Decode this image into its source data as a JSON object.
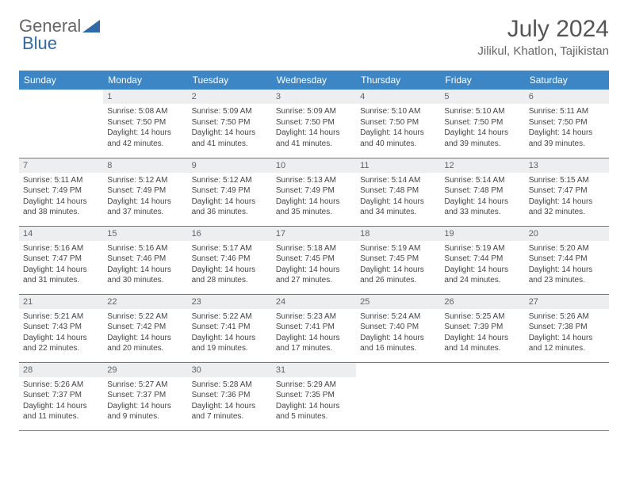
{
  "brand": {
    "name_part1": "General",
    "name_part2": "Blue"
  },
  "title": "July 2024",
  "location": "Jilikul, Khatlon, Tajikistan",
  "colors": {
    "header_bg": "#3d86c6",
    "header_text": "#ffffff",
    "daynum_bg": "#eceeef",
    "daynum_text": "#606468",
    "cell_border": "#3d86c6",
    "body_text": "#444444",
    "title_text": "#555555",
    "brand_accent": "#2f6aa8"
  },
  "weekdays": [
    "Sunday",
    "Monday",
    "Tuesday",
    "Wednesday",
    "Thursday",
    "Friday",
    "Saturday"
  ],
  "weeks": [
    [
      null,
      {
        "n": "1",
        "sr": "Sunrise: 5:08 AM",
        "ss": "Sunset: 7:50 PM",
        "d1": "Daylight: 14 hours",
        "d2": "and 42 minutes."
      },
      {
        "n": "2",
        "sr": "Sunrise: 5:09 AM",
        "ss": "Sunset: 7:50 PM",
        "d1": "Daylight: 14 hours",
        "d2": "and 41 minutes."
      },
      {
        "n": "3",
        "sr": "Sunrise: 5:09 AM",
        "ss": "Sunset: 7:50 PM",
        "d1": "Daylight: 14 hours",
        "d2": "and 41 minutes."
      },
      {
        "n": "4",
        "sr": "Sunrise: 5:10 AM",
        "ss": "Sunset: 7:50 PM",
        "d1": "Daylight: 14 hours",
        "d2": "and 40 minutes."
      },
      {
        "n": "5",
        "sr": "Sunrise: 5:10 AM",
        "ss": "Sunset: 7:50 PM",
        "d1": "Daylight: 14 hours",
        "d2": "and 39 minutes."
      },
      {
        "n": "6",
        "sr": "Sunrise: 5:11 AM",
        "ss": "Sunset: 7:50 PM",
        "d1": "Daylight: 14 hours",
        "d2": "and 39 minutes."
      }
    ],
    [
      {
        "n": "7",
        "sr": "Sunrise: 5:11 AM",
        "ss": "Sunset: 7:49 PM",
        "d1": "Daylight: 14 hours",
        "d2": "and 38 minutes."
      },
      {
        "n": "8",
        "sr": "Sunrise: 5:12 AM",
        "ss": "Sunset: 7:49 PM",
        "d1": "Daylight: 14 hours",
        "d2": "and 37 minutes."
      },
      {
        "n": "9",
        "sr": "Sunrise: 5:12 AM",
        "ss": "Sunset: 7:49 PM",
        "d1": "Daylight: 14 hours",
        "d2": "and 36 minutes."
      },
      {
        "n": "10",
        "sr": "Sunrise: 5:13 AM",
        "ss": "Sunset: 7:49 PM",
        "d1": "Daylight: 14 hours",
        "d2": "and 35 minutes."
      },
      {
        "n": "11",
        "sr": "Sunrise: 5:14 AM",
        "ss": "Sunset: 7:48 PM",
        "d1": "Daylight: 14 hours",
        "d2": "and 34 minutes."
      },
      {
        "n": "12",
        "sr": "Sunrise: 5:14 AM",
        "ss": "Sunset: 7:48 PM",
        "d1": "Daylight: 14 hours",
        "d2": "and 33 minutes."
      },
      {
        "n": "13",
        "sr": "Sunrise: 5:15 AM",
        "ss": "Sunset: 7:47 PM",
        "d1": "Daylight: 14 hours",
        "d2": "and 32 minutes."
      }
    ],
    [
      {
        "n": "14",
        "sr": "Sunrise: 5:16 AM",
        "ss": "Sunset: 7:47 PM",
        "d1": "Daylight: 14 hours",
        "d2": "and 31 minutes."
      },
      {
        "n": "15",
        "sr": "Sunrise: 5:16 AM",
        "ss": "Sunset: 7:46 PM",
        "d1": "Daylight: 14 hours",
        "d2": "and 30 minutes."
      },
      {
        "n": "16",
        "sr": "Sunrise: 5:17 AM",
        "ss": "Sunset: 7:46 PM",
        "d1": "Daylight: 14 hours",
        "d2": "and 28 minutes."
      },
      {
        "n": "17",
        "sr": "Sunrise: 5:18 AM",
        "ss": "Sunset: 7:45 PM",
        "d1": "Daylight: 14 hours",
        "d2": "and 27 minutes."
      },
      {
        "n": "18",
        "sr": "Sunrise: 5:19 AM",
        "ss": "Sunset: 7:45 PM",
        "d1": "Daylight: 14 hours",
        "d2": "and 26 minutes."
      },
      {
        "n": "19",
        "sr": "Sunrise: 5:19 AM",
        "ss": "Sunset: 7:44 PM",
        "d1": "Daylight: 14 hours",
        "d2": "and 24 minutes."
      },
      {
        "n": "20",
        "sr": "Sunrise: 5:20 AM",
        "ss": "Sunset: 7:44 PM",
        "d1": "Daylight: 14 hours",
        "d2": "and 23 minutes."
      }
    ],
    [
      {
        "n": "21",
        "sr": "Sunrise: 5:21 AM",
        "ss": "Sunset: 7:43 PM",
        "d1": "Daylight: 14 hours",
        "d2": "and 22 minutes."
      },
      {
        "n": "22",
        "sr": "Sunrise: 5:22 AM",
        "ss": "Sunset: 7:42 PM",
        "d1": "Daylight: 14 hours",
        "d2": "and 20 minutes."
      },
      {
        "n": "23",
        "sr": "Sunrise: 5:22 AM",
        "ss": "Sunset: 7:41 PM",
        "d1": "Daylight: 14 hours",
        "d2": "and 19 minutes."
      },
      {
        "n": "24",
        "sr": "Sunrise: 5:23 AM",
        "ss": "Sunset: 7:41 PM",
        "d1": "Daylight: 14 hours",
        "d2": "and 17 minutes."
      },
      {
        "n": "25",
        "sr": "Sunrise: 5:24 AM",
        "ss": "Sunset: 7:40 PM",
        "d1": "Daylight: 14 hours",
        "d2": "and 16 minutes."
      },
      {
        "n": "26",
        "sr": "Sunrise: 5:25 AM",
        "ss": "Sunset: 7:39 PM",
        "d1": "Daylight: 14 hours",
        "d2": "and 14 minutes."
      },
      {
        "n": "27",
        "sr": "Sunrise: 5:26 AM",
        "ss": "Sunset: 7:38 PM",
        "d1": "Daylight: 14 hours",
        "d2": "and 12 minutes."
      }
    ],
    [
      {
        "n": "28",
        "sr": "Sunrise: 5:26 AM",
        "ss": "Sunset: 7:37 PM",
        "d1": "Daylight: 14 hours",
        "d2": "and 11 minutes."
      },
      {
        "n": "29",
        "sr": "Sunrise: 5:27 AM",
        "ss": "Sunset: 7:37 PM",
        "d1": "Daylight: 14 hours",
        "d2": "and 9 minutes."
      },
      {
        "n": "30",
        "sr": "Sunrise: 5:28 AM",
        "ss": "Sunset: 7:36 PM",
        "d1": "Daylight: 14 hours",
        "d2": "and 7 minutes."
      },
      {
        "n": "31",
        "sr": "Sunrise: 5:29 AM",
        "ss": "Sunset: 7:35 PM",
        "d1": "Daylight: 14 hours",
        "d2": "and 5 minutes."
      },
      null,
      null,
      null
    ]
  ]
}
